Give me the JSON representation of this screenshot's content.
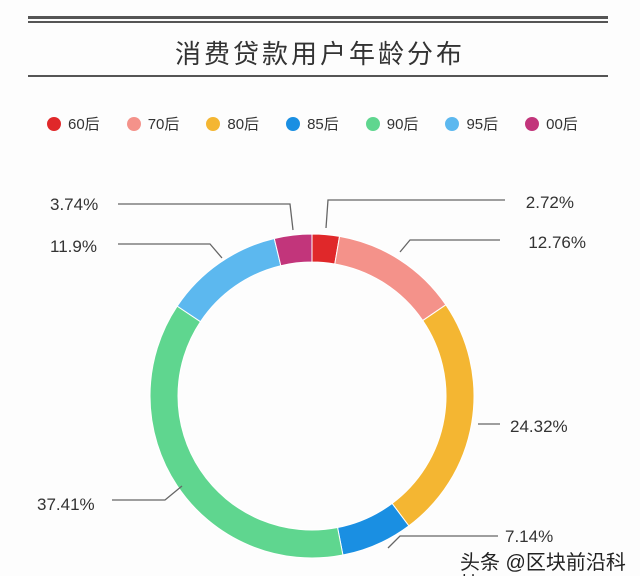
{
  "chart_data": {
    "type": "pie",
    "variant": "donut",
    "title": "消费贷款用户年龄分布",
    "categories": [
      "60后",
      "70后",
      "80后",
      "85后",
      "90后",
      "95后",
      "00后"
    ],
    "values": [
      2.72,
      12.76,
      24.32,
      7.14,
      37.41,
      11.9,
      3.74
    ],
    "labels": [
      "2.72%",
      "12.76%",
      "24.32%",
      "7.14%",
      "37.41%",
      "11.9%",
      "3.74%"
    ],
    "colors": [
      "#e0282a",
      "#f4928a",
      "#f4b632",
      "#1a8fe2",
      "#5fd68f",
      "#5cb8ef",
      "#c2357b"
    ],
    "legend": "top",
    "start": "top, clockwise"
  },
  "watermark": "头条 @区块前沿科技"
}
